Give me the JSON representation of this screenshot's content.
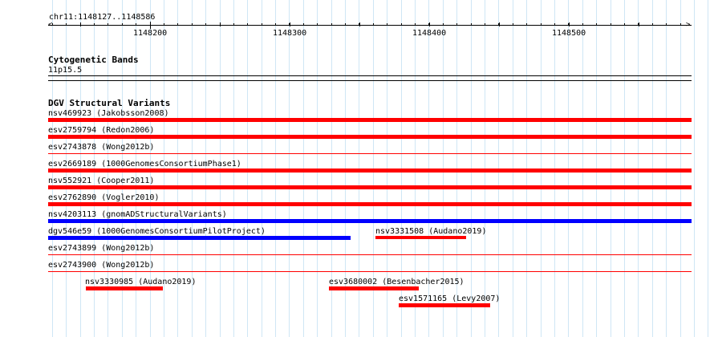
{
  "region": "chr11:1148127..1148586",
  "ruler_ticks": [
    "1148200",
    "1148300",
    "1148400",
    "1148500"
  ],
  "cytoband": {
    "title": "Cytogenetic Bands",
    "band": "11p15.5"
  },
  "dgv": {
    "title": "DGV Structural Variants",
    "variants": [
      {
        "label": "nsv469923 (Jakobsson2008)",
        "color": "#ff0000"
      },
      {
        "label": "esv2759794 (Redon2006)",
        "color": "#ff0000"
      },
      {
        "label": "esv2743878 (Wong2012b)",
        "color": "#ff0000"
      },
      {
        "label": "esv2669189 (1000GenomesConsortiumPhase1)",
        "color": "#ff0000"
      },
      {
        "label": "nsv552921 (Cooper2011)",
        "color": "#ff0000"
      },
      {
        "label": "esv2762890 (Vogler2010)",
        "color": "#ff0000"
      },
      {
        "label": "nsv4203113 (gnomADStructuralVariants)",
        "color": "#0000ff"
      },
      {
        "label": "dgv546e59 (1000GenomesConsortiumPilotProject)",
        "color": "#0000ff"
      },
      {
        "label": "nsv3331508 (Audano2019)",
        "color": "#ff0000"
      },
      {
        "label": "esv2743899 (Wong2012b)",
        "color": "#ff0000"
      },
      {
        "label": "esv2743900 (Wong2012b)",
        "color": "#ff0000"
      },
      {
        "label": "nsv3330985 (Audano2019)",
        "color": "#ff0000"
      },
      {
        "label": "esv3680002 (Besenbacher2015)",
        "color": "#ff0000"
      },
      {
        "label": "esv1571165 (Levy2007)",
        "color": "#ff0000"
      }
    ]
  }
}
